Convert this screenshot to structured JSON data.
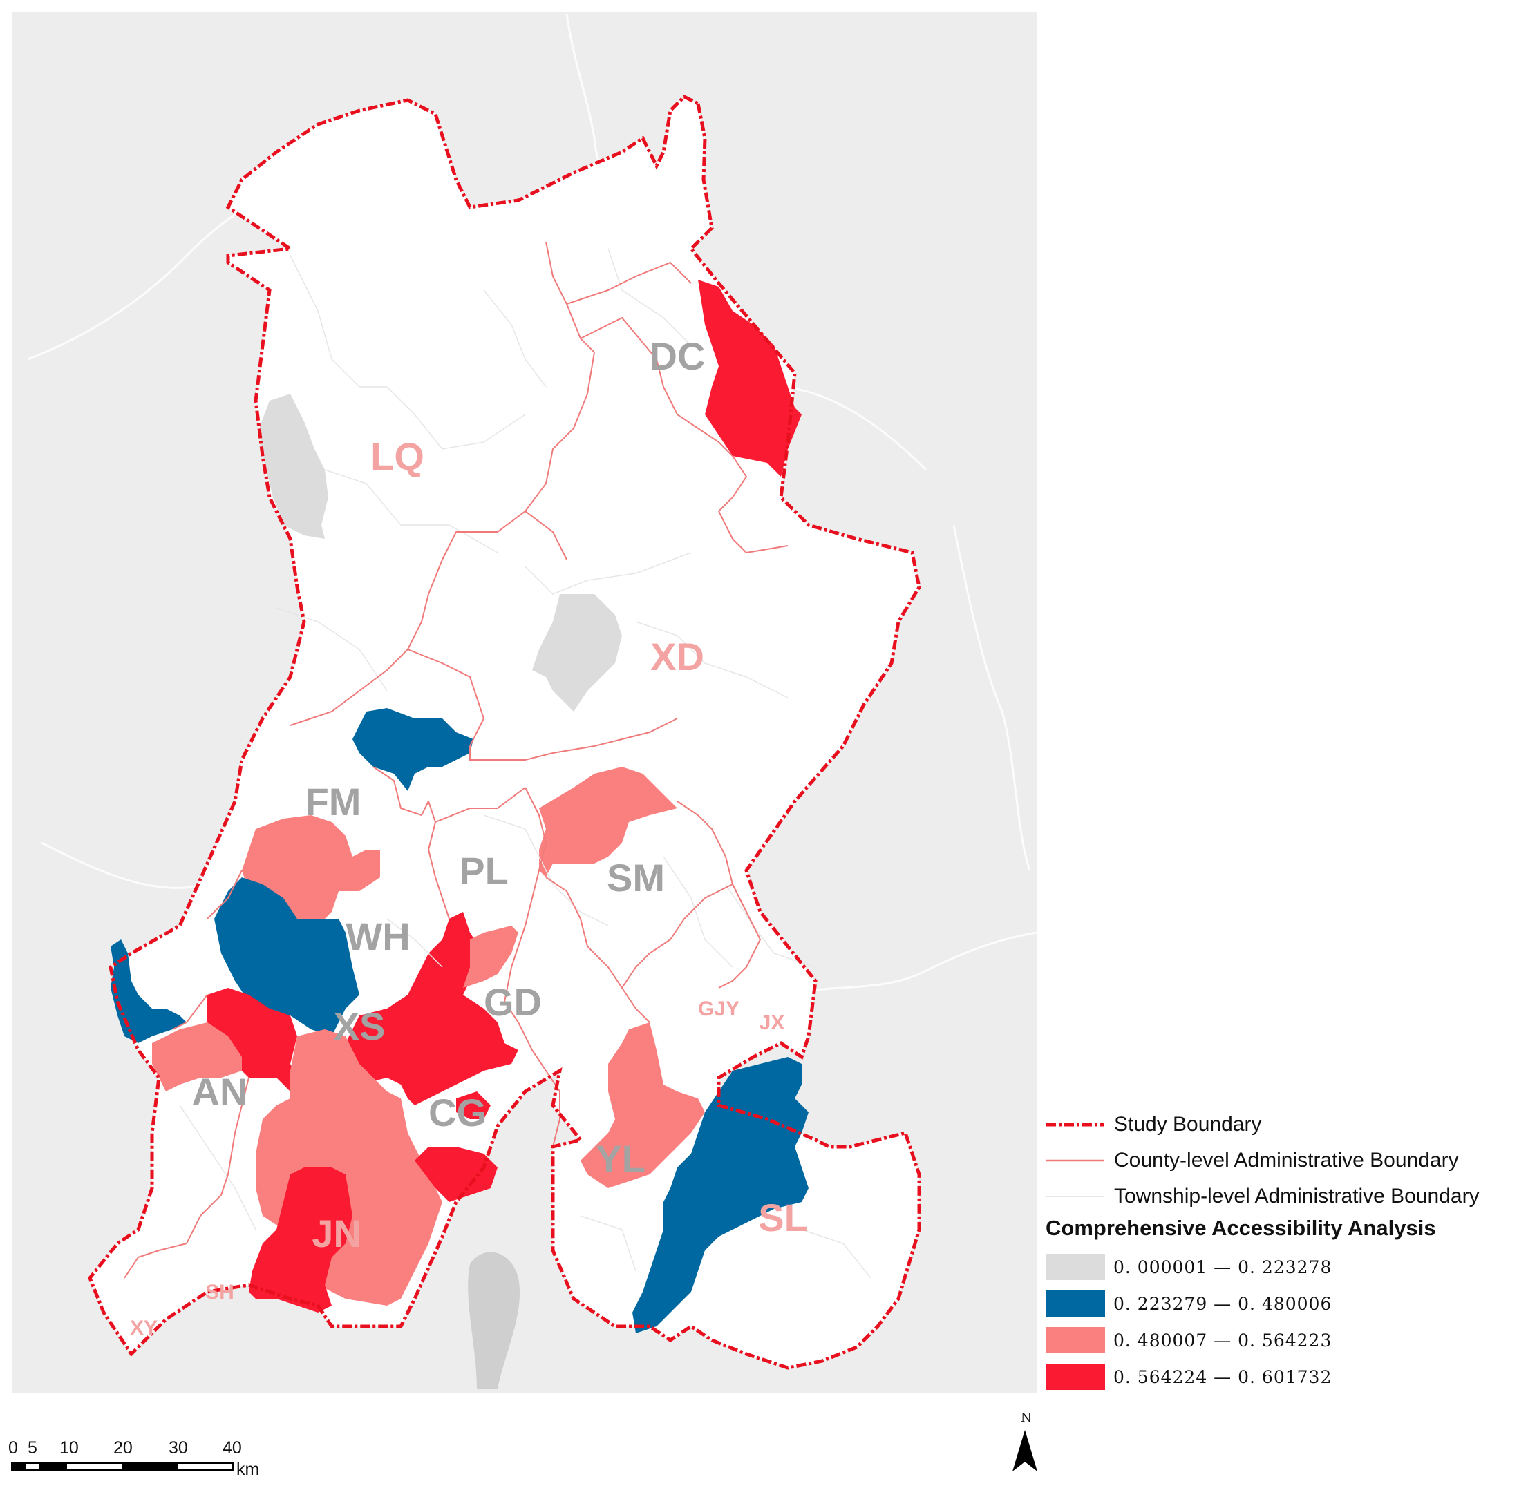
{
  "map": {
    "county_labels": [
      {
        "id": "DC",
        "text": "DC",
        "color": "#a3a3a3"
      },
      {
        "id": "LQ",
        "text": "LQ",
        "color": "#f4a3a3"
      },
      {
        "id": "XD",
        "text": "XD",
        "color": "#f4a3a3"
      },
      {
        "id": "FM",
        "text": "FM",
        "color": "#a3a3a3"
      },
      {
        "id": "PL",
        "text": "PL",
        "color": "#a3a3a3"
      },
      {
        "id": "SM",
        "text": "SM",
        "color": "#a3a3a3"
      },
      {
        "id": "WH",
        "text": "WH",
        "color": "#a3a3a3"
      },
      {
        "id": "GD",
        "text": "GD",
        "color": "#a3a3a3"
      },
      {
        "id": "XS",
        "text": "XS",
        "color": "#a3a3a3"
      },
      {
        "id": "AN",
        "text": "AN",
        "color": "#a3a3a3"
      },
      {
        "id": "CG",
        "text": "CG",
        "color": "#a3a3a3"
      },
      {
        "id": "YL",
        "text": "YL",
        "color": "#a3a3a3"
      },
      {
        "id": "SL",
        "text": "SL",
        "color": "#f4a3a3"
      },
      {
        "id": "JN",
        "text": "JN",
        "color": "#f4a3a3"
      },
      {
        "id": "GJY",
        "text": "GJY",
        "color": "#f4a3a3"
      },
      {
        "id": "JX",
        "text": "JX",
        "color": "#f4a3a3"
      },
      {
        "id": "SH",
        "text": "SH",
        "color": "#f4a3a3"
      },
      {
        "id": "XY",
        "text": "XY",
        "color": "#f4a3a3"
      }
    ]
  },
  "legend": {
    "study_boundary": "Study Boundary",
    "county_boundary": "County-level Administrative Boundary",
    "township_boundary": "Township-level Administrative Boundary",
    "title": "Comprehensive Accessibility Analysis",
    "classes": [
      {
        "range": "0. 000001 — 0. 223278",
        "color": "#dcdcdc"
      },
      {
        "range": "0. 223279 — 0. 480006",
        "color": "#0068a0"
      },
      {
        "range": "0. 480007 — 0. 564223",
        "color": "#fa8080"
      },
      {
        "range": "0. 564224 — 0. 601732",
        "color": "#fa1a32"
      }
    ]
  },
  "scale_bar": {
    "ticks": [
      "0",
      "5",
      "10",
      "20",
      "30",
      "40"
    ],
    "unit": "km"
  },
  "north_arrow": {
    "label": "N"
  },
  "colors": {
    "study_boundary": "#e8101e",
    "county_boundary": "#f07a7a",
    "township_boundary": "#e6e6e6",
    "background": "#ededed"
  }
}
